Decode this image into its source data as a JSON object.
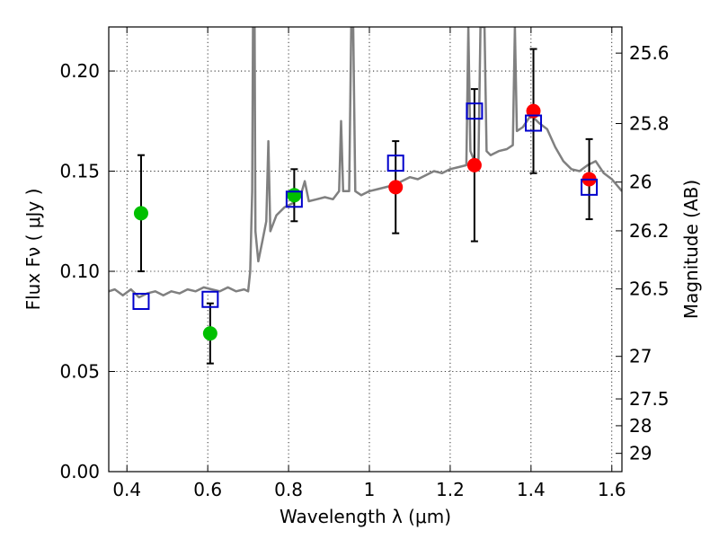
{
  "chart_data": {
    "type": "scatter",
    "title": "",
    "xlabel": "Wavelength  λ (μm)",
    "ylabel": "Flux  Fν  ( μJy )",
    "ylabel_right": "Magnitude (AB)",
    "xlim": [
      0.355,
      1.625
    ],
    "ylim": [
      0.0,
      0.222
    ],
    "grid": true,
    "x_ticks": [
      0.4,
      0.6,
      0.8,
      1.0,
      1.2,
      1.4,
      1.6
    ],
    "x_tick_labels": [
      "0.4",
      "0.6",
      "0.8",
      "1",
      "1.2",
      "1.4",
      "1.6"
    ],
    "y_ticks": [
      0.0,
      0.05,
      0.1,
      0.15,
      0.2
    ],
    "y_tick_labels": [
      "0.00",
      "0.05",
      "0.10",
      "0.15",
      "0.20"
    ],
    "mag_ticks": [
      25.6,
      25.8,
      26,
      26.2,
      26.5,
      27,
      27.5,
      28,
      29
    ],
    "mag_tick_labels": [
      "25.6",
      "25.8",
      "26",
      "26.2",
      "26.5",
      "27",
      "27.5",
      "28",
      "29"
    ],
    "series": [
      {
        "marker": "circle",
        "color": "#00c000",
        "points": [
          {
            "x": 0.435,
            "y": 0.129,
            "err": 0.029
          },
          {
            "x": 0.606,
            "y": 0.069,
            "err": 0.015
          },
          {
            "x": 0.814,
            "y": 0.138,
            "err": 0.013
          }
        ]
      },
      {
        "marker": "circle",
        "color": "#ff0000",
        "points": [
          {
            "x": 1.065,
            "y": 0.142,
            "err": 0.023
          },
          {
            "x": 1.26,
            "y": 0.153,
            "err": 0.038
          },
          {
            "x": 1.406,
            "y": 0.18,
            "err": 0.031
          },
          {
            "x": 1.544,
            "y": 0.146,
            "err": 0.02
          }
        ]
      },
      {
        "marker": "open-square",
        "color": "#0000cc",
        "points": [
          {
            "x": 0.435,
            "y": 0.085
          },
          {
            "x": 0.606,
            "y": 0.086
          },
          {
            "x": 0.814,
            "y": 0.136
          },
          {
            "x": 1.065,
            "y": 0.154
          },
          {
            "x": 1.26,
            "y": 0.18
          },
          {
            "x": 1.406,
            "y": 0.174
          },
          {
            "x": 1.544,
            "y": 0.142
          }
        ]
      },
      {
        "marker": "line",
        "color": "#808080",
        "points": [
          {
            "x": 0.355,
            "y": 0.09
          },
          {
            "x": 0.37,
            "y": 0.091
          },
          {
            "x": 0.39,
            "y": 0.088
          },
          {
            "x": 0.41,
            "y": 0.091
          },
          {
            "x": 0.43,
            "y": 0.087
          },
          {
            "x": 0.45,
            "y": 0.089
          },
          {
            "x": 0.47,
            "y": 0.09
          },
          {
            "x": 0.49,
            "y": 0.088
          },
          {
            "x": 0.51,
            "y": 0.09
          },
          {
            "x": 0.53,
            "y": 0.089
          },
          {
            "x": 0.55,
            "y": 0.091
          },
          {
            "x": 0.57,
            "y": 0.09
          },
          {
            "x": 0.59,
            "y": 0.092
          },
          {
            "x": 0.61,
            "y": 0.091
          },
          {
            "x": 0.63,
            "y": 0.09
          },
          {
            "x": 0.65,
            "y": 0.092
          },
          {
            "x": 0.67,
            "y": 0.09
          },
          {
            "x": 0.69,
            "y": 0.091
          },
          {
            "x": 0.7,
            "y": 0.09
          },
          {
            "x": 0.705,
            "y": 0.1
          },
          {
            "x": 0.71,
            "y": 0.14
          },
          {
            "x": 0.712,
            "y": 0.222
          },
          {
            "x": 0.716,
            "y": 0.222
          },
          {
            "x": 0.718,
            "y": 0.12
          },
          {
            "x": 0.725,
            "y": 0.105
          },
          {
            "x": 0.735,
            "y": 0.115
          },
          {
            "x": 0.745,
            "y": 0.125
          },
          {
            "x": 0.75,
            "y": 0.165
          },
          {
            "x": 0.755,
            "y": 0.12
          },
          {
            "x": 0.77,
            "y": 0.128
          },
          {
            "x": 0.79,
            "y": 0.132
          },
          {
            "x": 0.81,
            "y": 0.134
          },
          {
            "x": 0.83,
            "y": 0.138
          },
          {
            "x": 0.84,
            "y": 0.145
          },
          {
            "x": 0.85,
            "y": 0.135
          },
          {
            "x": 0.87,
            "y": 0.136
          },
          {
            "x": 0.89,
            "y": 0.137
          },
          {
            "x": 0.91,
            "y": 0.136
          },
          {
            "x": 0.925,
            "y": 0.14
          },
          {
            "x": 0.93,
            "y": 0.175
          },
          {
            "x": 0.935,
            "y": 0.14
          },
          {
            "x": 0.95,
            "y": 0.14
          },
          {
            "x": 0.955,
            "y": 0.222
          },
          {
            "x": 0.96,
            "y": 0.222
          },
          {
            "x": 0.965,
            "y": 0.14
          },
          {
            "x": 0.98,
            "y": 0.138
          },
          {
            "x": 1.0,
            "y": 0.14
          },
          {
            "x": 1.02,
            "y": 0.141
          },
          {
            "x": 1.04,
            "y": 0.142
          },
          {
            "x": 1.06,
            "y": 0.143
          },
          {
            "x": 1.08,
            "y": 0.145
          },
          {
            "x": 1.1,
            "y": 0.147
          },
          {
            "x": 1.12,
            "y": 0.146
          },
          {
            "x": 1.14,
            "y": 0.148
          },
          {
            "x": 1.16,
            "y": 0.15
          },
          {
            "x": 1.18,
            "y": 0.149
          },
          {
            "x": 1.2,
            "y": 0.151
          },
          {
            "x": 1.22,
            "y": 0.152
          },
          {
            "x": 1.24,
            "y": 0.153
          },
          {
            "x": 1.245,
            "y": 0.222
          },
          {
            "x": 1.25,
            "y": 0.16
          },
          {
            "x": 1.26,
            "y": 0.155
          },
          {
            "x": 1.27,
            "y": 0.156
          },
          {
            "x": 1.275,
            "y": 0.222
          },
          {
            "x": 1.285,
            "y": 0.222
          },
          {
            "x": 1.29,
            "y": 0.16
          },
          {
            "x": 1.3,
            "y": 0.158
          },
          {
            "x": 1.32,
            "y": 0.16
          },
          {
            "x": 1.34,
            "y": 0.161
          },
          {
            "x": 1.355,
            "y": 0.163
          },
          {
            "x": 1.36,
            "y": 0.222
          },
          {
            "x": 1.365,
            "y": 0.17
          },
          {
            "x": 1.38,
            "y": 0.172
          },
          {
            "x": 1.4,
            "y": 0.178
          },
          {
            "x": 1.42,
            "y": 0.174
          },
          {
            "x": 1.44,
            "y": 0.171
          },
          {
            "x": 1.46,
            "y": 0.162
          },
          {
            "x": 1.48,
            "y": 0.155
          },
          {
            "x": 1.5,
            "y": 0.151
          },
          {
            "x": 1.52,
            "y": 0.15
          },
          {
            "x": 1.54,
            "y": 0.153
          },
          {
            "x": 1.56,
            "y": 0.155
          },
          {
            "x": 1.58,
            "y": 0.149
          },
          {
            "x": 1.6,
            "y": 0.146
          },
          {
            "x": 1.625,
            "y": 0.14
          }
        ]
      }
    ]
  }
}
